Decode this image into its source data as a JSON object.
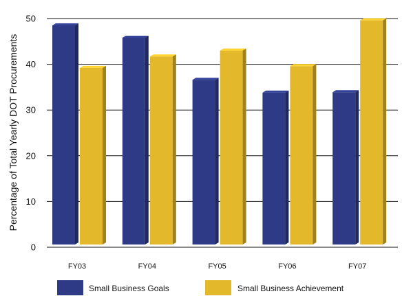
{
  "chart_data": {
    "type": "bar",
    "title": "",
    "xlabel": "",
    "ylabel": "Percentage of Total Yearly DOT Procurements",
    "ylim": [
      0,
      50
    ],
    "yticks": [
      0,
      10,
      20,
      30,
      40,
      50
    ],
    "grid": true,
    "legend_position": "bottom",
    "categories": [
      "FY03",
      "FY04",
      "FY05",
      "FY06",
      "FY07"
    ],
    "series": [
      {
        "name": "Small Business Goals",
        "color": "#2e3a86",
        "values": [
          48.5,
          45.8,
          36.6,
          33.8,
          33.9
        ]
      },
      {
        "name": "Small Business Achievement",
        "color": "#e3b82a",
        "values": [
          39.2,
          41.7,
          43.0,
          39.6,
          49.6
        ]
      }
    ]
  }
}
